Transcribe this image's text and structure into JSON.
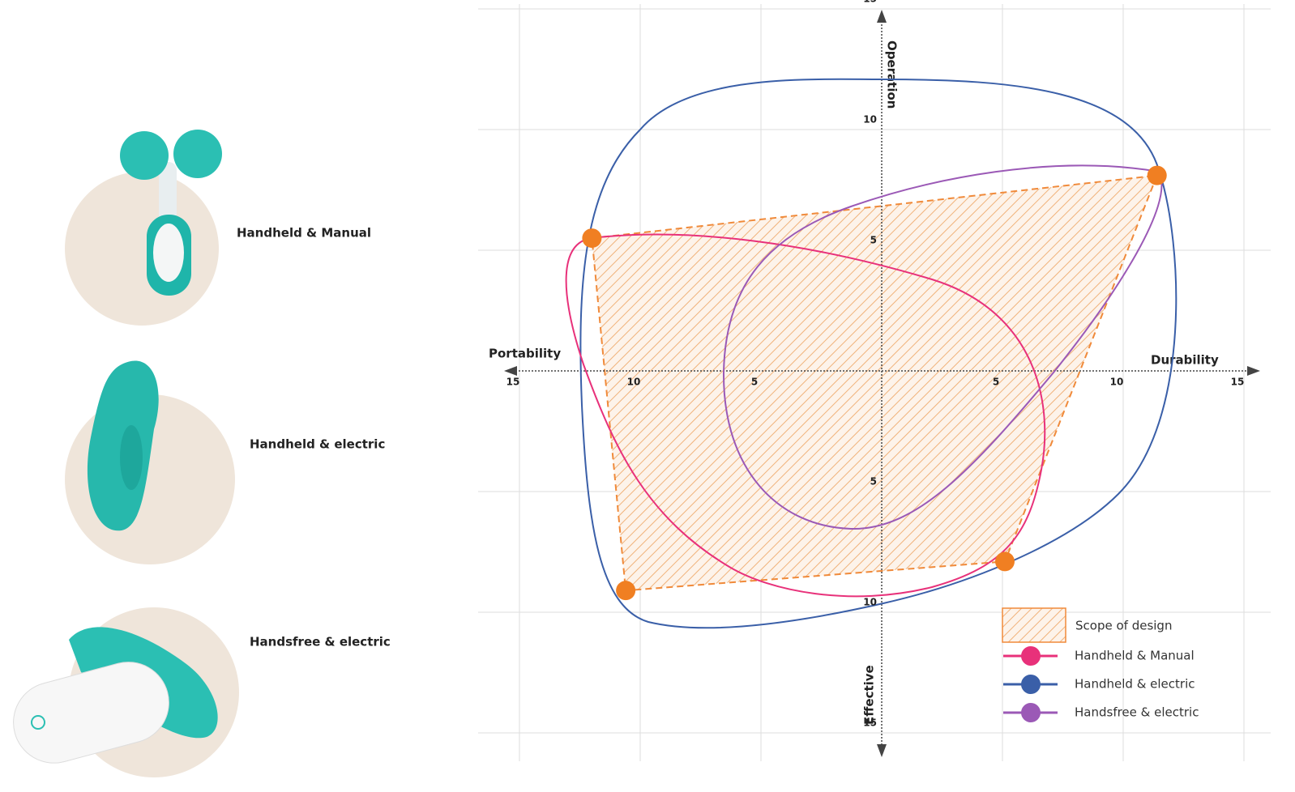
{
  "products": [
    {
      "label": "Handheld & Manual"
    },
    {
      "label": "Handheld & electric"
    },
    {
      "label": "Handsfree & electric"
    }
  ],
  "axes": {
    "left": "Portability",
    "right": "Durability",
    "top": "Operation",
    "bottom": "Effective",
    "ticks": [
      5,
      10,
      15
    ]
  },
  "scope_points": [
    [
      -12.0,
      5.5
    ],
    [
      11.4,
      8.1
    ],
    [
      5.1,
      -7.9
    ],
    [
      -10.6,
      -9.1
    ]
  ],
  "legend": {
    "scope": "Scope of design",
    "series": [
      {
        "name": "Handheld & Manual",
        "color": "#e8317a"
      },
      {
        "name": "Handheld & electric",
        "color": "#3a5fa8"
      },
      {
        "name": "Handsfree & electric",
        "color": "#9b59b6"
      }
    ]
  }
}
